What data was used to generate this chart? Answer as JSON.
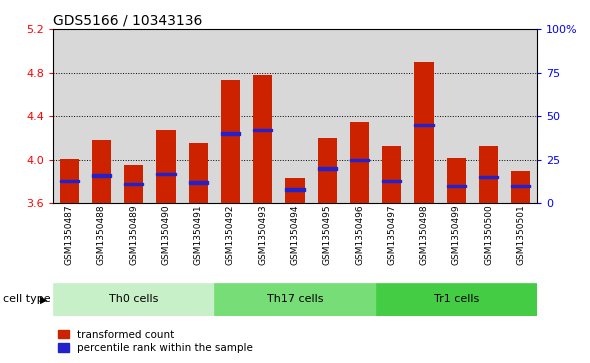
{
  "title": "GDS5166 / 10343136",
  "samples": [
    "GSM1350487",
    "GSM1350488",
    "GSM1350489",
    "GSM1350490",
    "GSM1350491",
    "GSM1350492",
    "GSM1350493",
    "GSM1350494",
    "GSM1350495",
    "GSM1350496",
    "GSM1350497",
    "GSM1350498",
    "GSM1350499",
    "GSM1350500",
    "GSM1350501"
  ],
  "red_values": [
    4.01,
    4.18,
    3.95,
    4.27,
    4.15,
    4.73,
    4.78,
    3.83,
    4.2,
    4.35,
    4.13,
    4.9,
    4.02,
    4.13,
    3.9
  ],
  "blue_values": [
    13,
    16,
    11,
    17,
    12,
    40,
    42,
    8,
    20,
    25,
    13,
    45,
    10,
    15,
    10
  ],
  "cell_types": [
    {
      "label": "Th0 cells",
      "start": 0,
      "end": 5,
      "color": "#c8f0c8"
    },
    {
      "label": "Th17 cells",
      "start": 5,
      "end": 10,
      "color": "#77dd77"
    },
    {
      "label": "Tr1 cells",
      "start": 10,
      "end": 15,
      "color": "#44cc44"
    }
  ],
  "ylim_left": [
    3.6,
    5.2
  ],
  "ylim_right": [
    0,
    100
  ],
  "yticks_left": [
    3.6,
    4.0,
    4.4,
    4.8,
    5.2
  ],
  "yticks_right": [
    0,
    25,
    50,
    75,
    100
  ],
  "ytick_labels_right": [
    "0",
    "25",
    "50",
    "75",
    "100%"
  ],
  "bar_color": "#cc2200",
  "blue_color": "#2222cc",
  "bar_width": 0.6,
  "col_bg_color": "#d8d8d8"
}
